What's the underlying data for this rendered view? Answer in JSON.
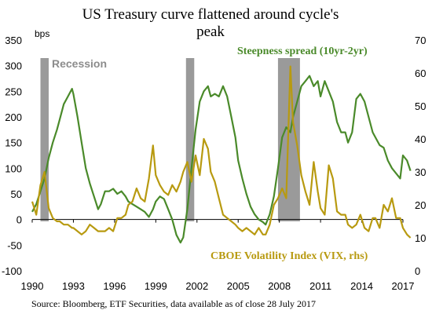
{
  "chart_data": {
    "type": "line",
    "title": "US Treasury curve flattened around cycle's peak",
    "left_unit": "bps",
    "ylim_left": [
      -100,
      350
    ],
    "ylim_right": [
      0,
      70
    ],
    "xlim": [
      1990,
      2017
    ],
    "x_ticks": [
      1990,
      1993,
      1996,
      1999,
      2002,
      2005,
      2008,
      2011,
      2014,
      2017
    ],
    "y_ticks_left": [
      -100,
      -50,
      0,
      50,
      100,
      150,
      200,
      250,
      300,
      350
    ],
    "y_ticks_right": [
      0,
      10,
      20,
      30,
      40,
      50,
      60,
      70
    ],
    "recession_label": "Recession",
    "recessions": [
      [
        1990.6,
        1991.2
      ],
      [
        2001.2,
        2001.8
      ],
      [
        2007.9,
        2009.5
      ]
    ],
    "series": [
      {
        "name": "Steepness spread (10yr-2yr)",
        "axis": "left",
        "color": "#4a8a2a",
        "x": [
          1990.0,
          1990.3,
          1990.6,
          1990.9,
          1991.2,
          1991.5,
          1991.8,
          1992.0,
          1992.3,
          1992.6,
          1992.9,
          1993.0,
          1993.3,
          1993.6,
          1993.9,
          1994.2,
          1994.5,
          1994.8,
          1995.0,
          1995.3,
          1995.6,
          1995.9,
          1996.2,
          1996.5,
          1996.8,
          1997.0,
          1997.3,
          1997.6,
          1997.9,
          1998.2,
          1998.5,
          1998.8,
          1999.0,
          1999.3,
          1999.6,
          1999.9,
          2000.2,
          2000.5,
          2000.8,
          2001.0,
          2001.3,
          2001.6,
          2001.9,
          2002.2,
          2002.5,
          2002.8,
          2003.0,
          2003.3,
          2003.6,
          2003.9,
          2004.2,
          2004.5,
          2004.8,
          2005.0,
          2005.3,
          2005.6,
          2005.9,
          2006.2,
          2006.5,
          2006.8,
          2007.0,
          2007.3,
          2007.6,
          2007.9,
          2008.2,
          2008.5,
          2008.8,
          2009.0,
          2009.3,
          2009.6,
          2009.9,
          2010.2,
          2010.5,
          2010.8,
          2011.0,
          2011.3,
          2011.6,
          2011.9,
          2012.2,
          2012.5,
          2012.8,
          2013.0,
          2013.3,
          2013.6,
          2013.9,
          2014.2,
          2014.5,
          2014.8,
          2015.0,
          2015.3,
          2015.6,
          2015.9,
          2016.2,
          2016.5,
          2016.8,
          2017.0,
          2017.3,
          2017.55
        ],
        "values": [
          15,
          30,
          55,
          80,
          120,
          150,
          175,
          195,
          225,
          240,
          255,
          245,
          200,
          150,
          100,
          70,
          45,
          20,
          30,
          55,
          55,
          60,
          50,
          55,
          45,
          35,
          30,
          25,
          20,
          15,
          5,
          20,
          35,
          45,
          40,
          20,
          0,
          -30,
          -45,
          -35,
          20,
          100,
          175,
          230,
          250,
          260,
          240,
          245,
          240,
          260,
          240,
          200,
          160,
          115,
          80,
          50,
          25,
          10,
          0,
          -5,
          -10,
          10,
          45,
          100,
          160,
          180,
          170,
          200,
          230,
          260,
          270,
          280,
          260,
          270,
          240,
          270,
          250,
          230,
          190,
          170,
          170,
          150,
          170,
          235,
          245,
          230,
          200,
          170,
          160,
          145,
          140,
          115,
          100,
          90,
          80,
          125,
          115,
          95
        ]
      },
      {
        "name": "CBOE Volatility Index (VIX, rhs)",
        "axis": "right",
        "color": "#b89a10",
        "x": [
          1990.0,
          1990.3,
          1990.6,
          1990.9,
          1991.2,
          1991.5,
          1991.8,
          1992.0,
          1992.3,
          1992.6,
          1992.9,
          1993.0,
          1993.3,
          1993.6,
          1993.9,
          1994.2,
          1994.5,
          1994.8,
          1995.0,
          1995.3,
          1995.6,
          1995.9,
          1996.2,
          1996.5,
          1996.8,
          1997.0,
          1997.3,
          1997.6,
          1997.9,
          1998.2,
          1998.5,
          1998.8,
          1999.0,
          1999.3,
          1999.6,
          1999.9,
          2000.2,
          2000.5,
          2000.8,
          2001.0,
          2001.3,
          2001.6,
          2001.9,
          2002.2,
          2002.5,
          2002.8,
          2003.0,
          2003.3,
          2003.6,
          2003.9,
          2004.2,
          2004.5,
          2004.8,
          2005.0,
          2005.3,
          2005.6,
          2005.9,
          2006.2,
          2006.5,
          2006.8,
          2007.0,
          2007.3,
          2007.6,
          2007.9,
          2008.2,
          2008.5,
          2008.8,
          2009.0,
          2009.3,
          2009.6,
          2009.9,
          2010.2,
          2010.5,
          2010.8,
          2011.0,
          2011.3,
          2011.6,
          2011.9,
          2012.2,
          2012.5,
          2012.8,
          2013.0,
          2013.3,
          2013.6,
          2013.9,
          2014.2,
          2014.5,
          2014.8,
          2015.0,
          2015.3,
          2015.6,
          2015.9,
          2016.2,
          2016.5,
          2016.8,
          2017.0,
          2017.3,
          2017.55
        ],
        "values": [
          21,
          17,
          26,
          30,
          19,
          16,
          15,
          15,
          14,
          14,
          13,
          13,
          12,
          11,
          12,
          14,
          13,
          12,
          12,
          12,
          13,
          12,
          16,
          16,
          17,
          20,
          21,
          25,
          22,
          21,
          28,
          38,
          29,
          26,
          24,
          23,
          26,
          24,
          27,
          30,
          33,
          27,
          35,
          29,
          40,
          37,
          30,
          27,
          22,
          17,
          16,
          15,
          14,
          13,
          12,
          13,
          12,
          11,
          13,
          11,
          11,
          14,
          20,
          22,
          25,
          22,
          62,
          45,
          38,
          29,
          24,
          20,
          33,
          24,
          19,
          17,
          32,
          28,
          18,
          17,
          17,
          14,
          13,
          14,
          17,
          13,
          12,
          16,
          16,
          13,
          20,
          18,
          22,
          16,
          16,
          13,
          11,
          10
        ]
      }
    ]
  },
  "source_note": "Source: Bloomberg, ETF Securities, data available as of close 28 July 2017"
}
